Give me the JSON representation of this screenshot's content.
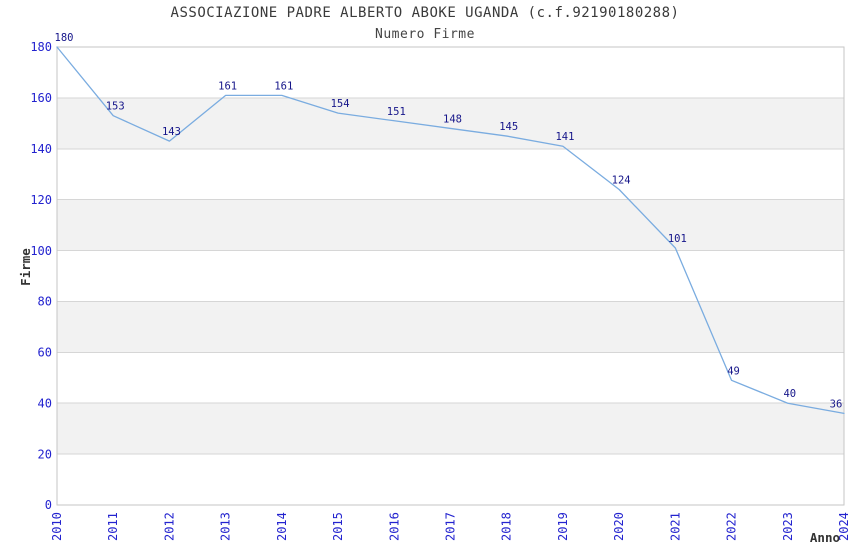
{
  "chart_data": {
    "type": "line",
    "title": "ASSOCIAZIONE PADRE ALBERTO ABOKE UGANDA (c.f.92190180288)",
    "subtitle": "Numero Firme",
    "xlabel": "Anno",
    "ylabel": "Firme",
    "x": [
      2010,
      2011,
      2012,
      2013,
      2014,
      2015,
      2016,
      2017,
      2018,
      2019,
      2020,
      2021,
      2022,
      2023,
      2024
    ],
    "series": [
      {
        "name": "Numero Firme",
        "values": [
          180,
          153,
          143,
          161,
          161,
          154,
          151,
          148,
          145,
          141,
          124,
          101,
          49,
          40,
          36
        ]
      }
    ],
    "ylim": [
      0,
      180
    ],
    "ytick_step": 20,
    "yticks": [
      0,
      20,
      40,
      60,
      80,
      100,
      120,
      140,
      160,
      180
    ],
    "data_labels": true,
    "legend": false,
    "grid": "horizontal-alternating-bands",
    "colors": {
      "line": "#7aace0",
      "data_label": "#16168a",
      "tick_label": "#2323cf",
      "band": "#f2f2f2",
      "band_alt": "#ffffff",
      "grid": "#d6d6d6",
      "border": "#c6c6c6",
      "axis_title": "#333333",
      "title_text": "#3a3a3a"
    }
  }
}
